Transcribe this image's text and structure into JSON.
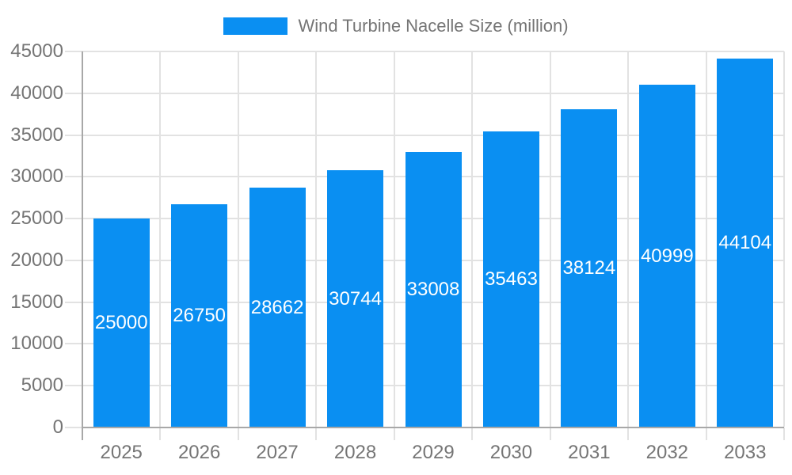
{
  "chart_data": {
    "type": "bar",
    "title": "Wind Turbine Nacelle Size (million)",
    "legend": {
      "position": "top",
      "entries": [
        "Wind Turbine Nacelle Size (million)"
      ]
    },
    "categories": [
      "2025",
      "2026",
      "2027",
      "2028",
      "2029",
      "2030",
      "2031",
      "2032",
      "2033"
    ],
    "values": [
      25000,
      26750,
      28662,
      30744,
      33008,
      35463,
      38124,
      40999,
      44104
    ],
    "value_labels_shown": true,
    "xlabel": "",
    "ylabel": "",
    "ylim": [
      0,
      45000
    ],
    "ytick_step": 5000,
    "ytick_labels": [
      "0",
      "5000",
      "10000",
      "15000",
      "20000",
      "25000",
      "30000",
      "35000",
      "40000",
      "45000"
    ],
    "grid": true,
    "colors": {
      "bar": "#0a8ff2",
      "grid": "#e2e2e2",
      "axis": "#a8a8a8",
      "tick_label": "#757575",
      "value_label": "#ffffff",
      "background": "#ffffff"
    }
  }
}
